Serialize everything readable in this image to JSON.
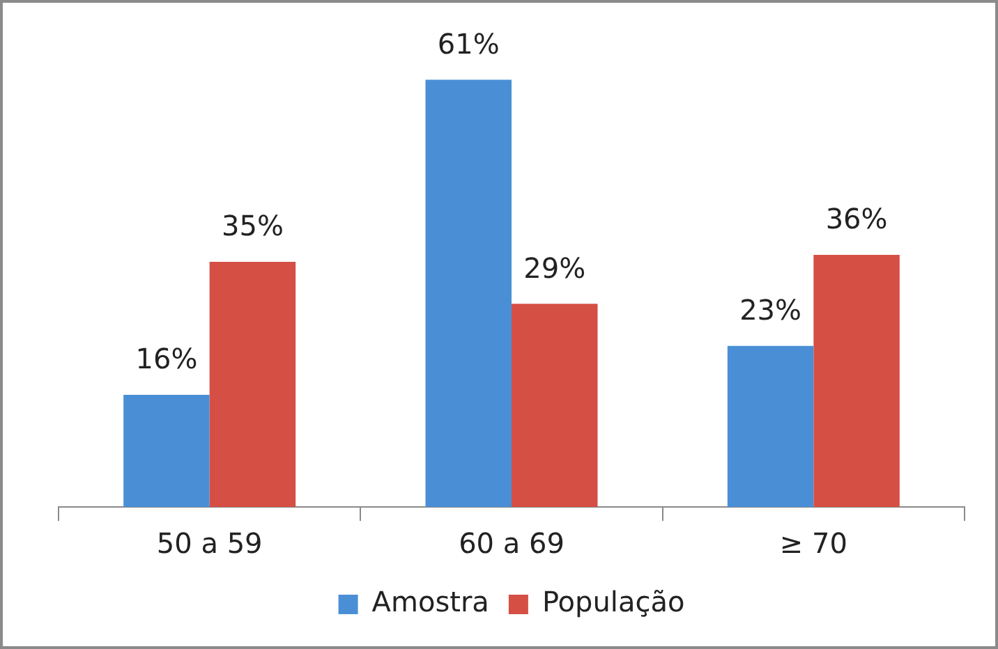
{
  "chart_data": {
    "type": "bar",
    "categories": [
      "50 a 59",
      "60 a 69",
      "≥ 70"
    ],
    "series": [
      {
        "name": "Amostra",
        "color": "#4a8fd6",
        "values": [
          16,
          61,
          23
        ],
        "value_labels": [
          "16%",
          "61%",
          "23%"
        ]
      },
      {
        "name": "População",
        "color": "#d64f45",
        "values": [
          35,
          29,
          36
        ],
        "value_labels": [
          "35%",
          "29%",
          "36%"
        ]
      }
    ],
    "tick_labels": "x",
    "grid": false,
    "legend": "bottom"
  }
}
